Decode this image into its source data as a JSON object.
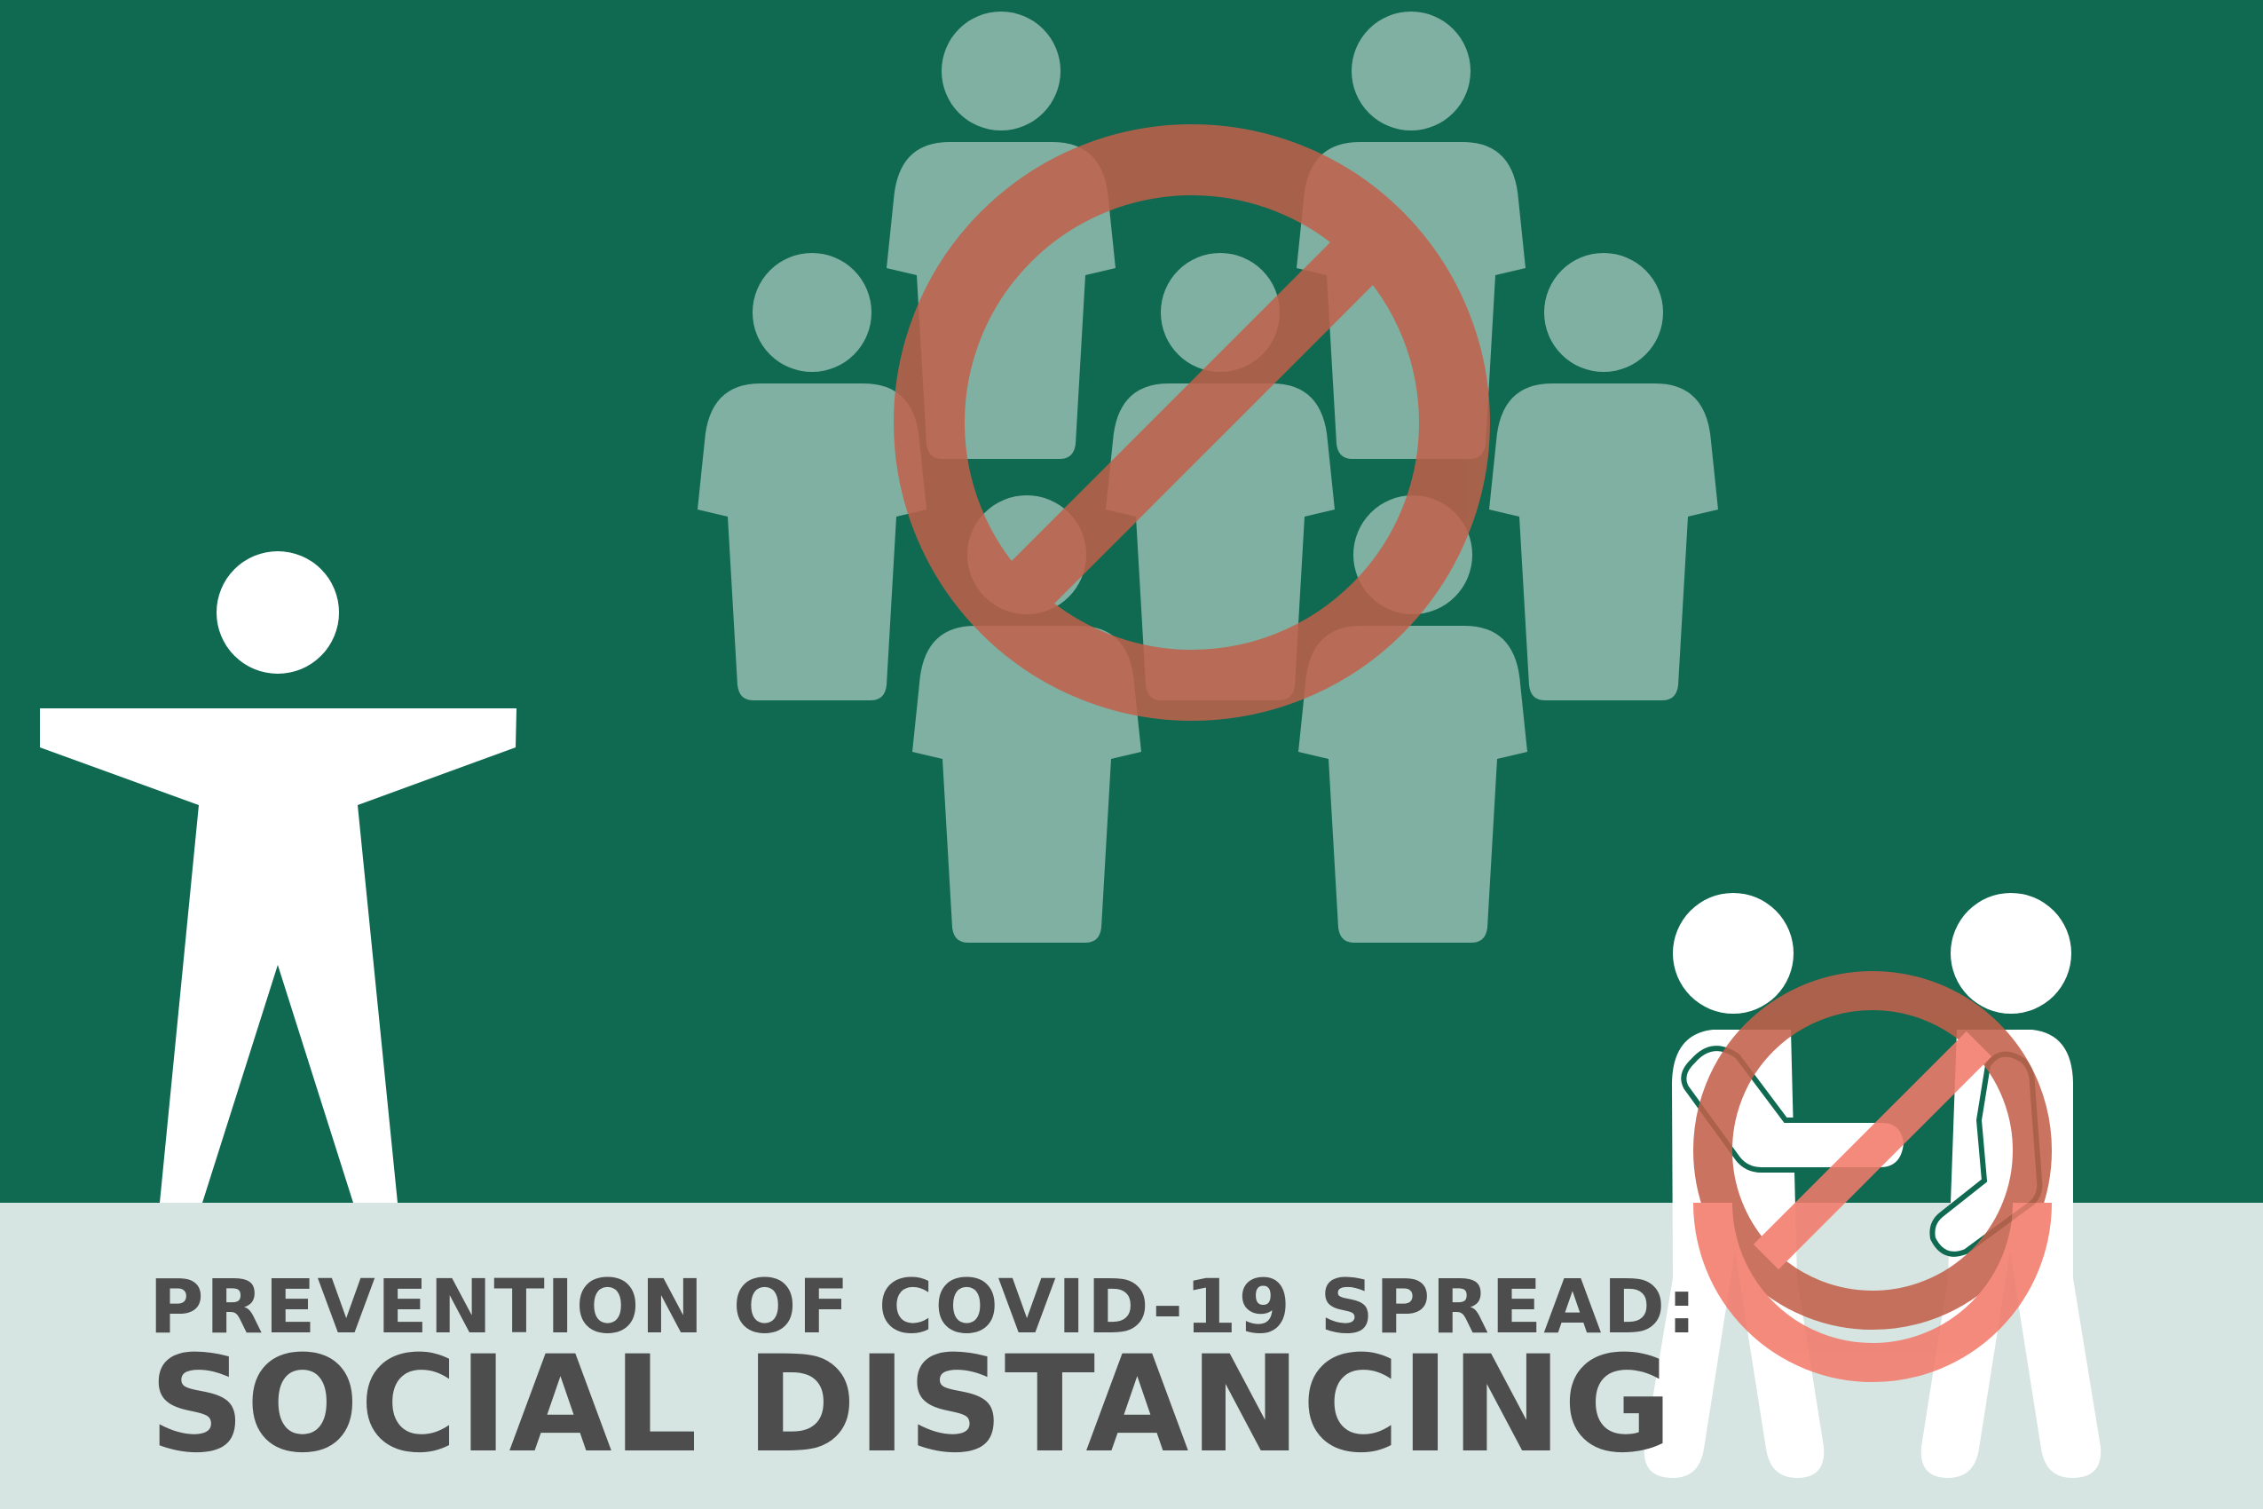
{
  "colors": {
    "background_green": "#106a51",
    "footer_band": "#d6e5e1",
    "crowd_figure": "#7fb0a2",
    "foreground_figure": "#ffffff",
    "prohibition_ring_over_green": "#c2604b",
    "prohibition_ring_over_light": "#f27b6b",
    "text": "#4d4d4d"
  },
  "icons": {
    "crowd": "crowd-icon",
    "prohibition": "prohibition-icon",
    "standing_person": "person-arms-out-icon",
    "handshake": "handshake-icon"
  },
  "title": {
    "line1": "PREVENTION OF COVID-19 SPREAD:",
    "line2": "SOCIAL DISTANCING"
  }
}
